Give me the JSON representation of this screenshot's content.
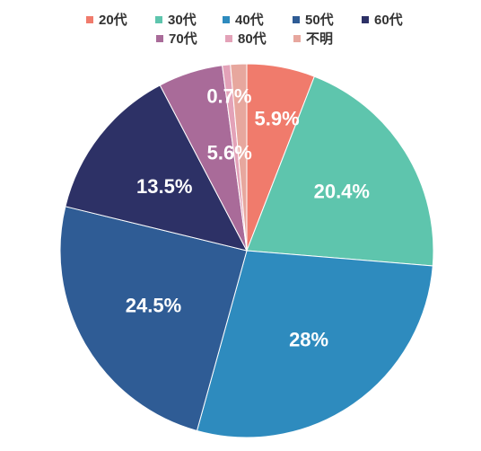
{
  "chart_data": {
    "type": "pie",
    "categories": [
      "20代",
      "30代",
      "40代",
      "50代",
      "60代",
      "70代",
      "80代",
      "不明"
    ],
    "values": [
      5.9,
      20.4,
      28.0,
      24.5,
      13.5,
      5.6,
      0.7,
      1.4
    ],
    "data_labels": [
      "5.9%",
      "20.4%",
      "28%",
      "24.5%",
      "13.5%",
      "5.6%",
      "0.7%",
      ""
    ],
    "colors": [
      "#f07b6c",
      "#5ec5ad",
      "#2e8bbe",
      "#2f5c95",
      "#2d3166",
      "#a96b99",
      "#e3a2b8",
      "#e7a79e"
    ],
    "legend_position": "top",
    "title": ""
  }
}
